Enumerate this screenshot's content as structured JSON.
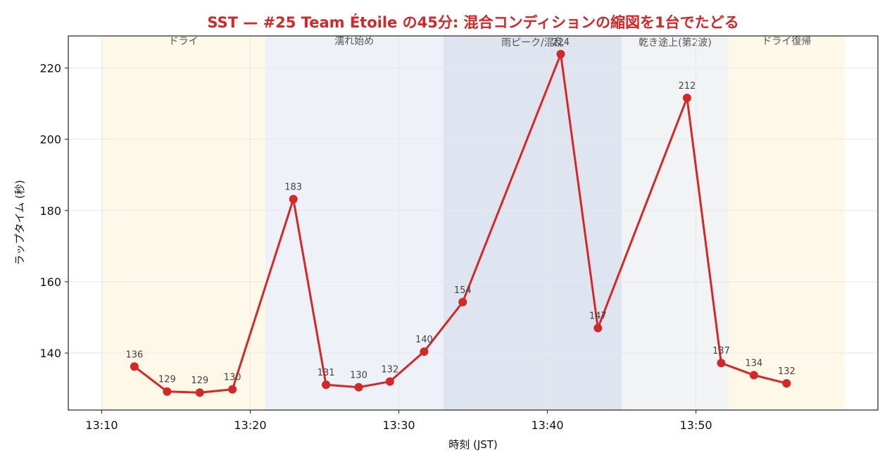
{
  "chart_data": {
    "type": "line",
    "title": "SST — #25 Team Étoile の45分: 混合コンディションの縮図を1台でたどる",
    "xlabel": "時刻 (JST)",
    "ylabel": "ラップタイム (秒)",
    "x_ticks": [
      "13:10",
      "13:20",
      "13:30",
      "13:40",
      "13:50"
    ],
    "y_ticks": [
      140,
      160,
      180,
      200,
      220
    ],
    "xlim": [
      "13:10",
      "13:60"
    ],
    "ylim": [
      124,
      229
    ],
    "grid": true,
    "line_color": "#d62728",
    "phases": [
      {
        "label": "ドライ",
        "start": "13:10",
        "end": "13:21",
        "color": "#fdf3d9"
      },
      {
        "label": "濡れ始め",
        "start": "13:21",
        "end": "13:33",
        "color": "#e3eaf4"
      },
      {
        "label": "雨ピーク/混乱",
        "start": "13:33",
        "end": "13:45",
        "color": "#c8d3e6"
      },
      {
        "label": "乾き途上(第2波)",
        "start": "13:45",
        "end": "13:52.2",
        "color": "#e7ebef"
      },
      {
        "label": "ドライ復帰",
        "start": "13:52.2",
        "end": "13:60",
        "color": "#fdf3d9"
      }
    ],
    "series": [
      {
        "x": [
          "13:12.2",
          "13:14.4",
          "13:16.6",
          "13:18.8",
          "13:22.9",
          "13:25.1",
          "13:27.3",
          "13:29.4",
          "13:31.7",
          "13:34.3",
          "13:40.9",
          "13:43.4",
          "13:49.4",
          "13:51.7",
          "13:53.9",
          "13:56.1"
        ],
        "values": [
          136.2,
          129.2,
          128.9,
          129.8,
          183.2,
          131.1,
          130.4,
          132.0,
          140.4,
          154.3,
          223.9,
          147.0,
          211.6,
          137.2,
          133.8,
          131.5
        ],
        "labels": [
          "136",
          "129",
          "129",
          "130",
          "183",
          "131",
          "130",
          "132",
          "140",
          "154",
          "224",
          "147",
          "212",
          "137",
          "134",
          "132"
        ]
      }
    ]
  }
}
